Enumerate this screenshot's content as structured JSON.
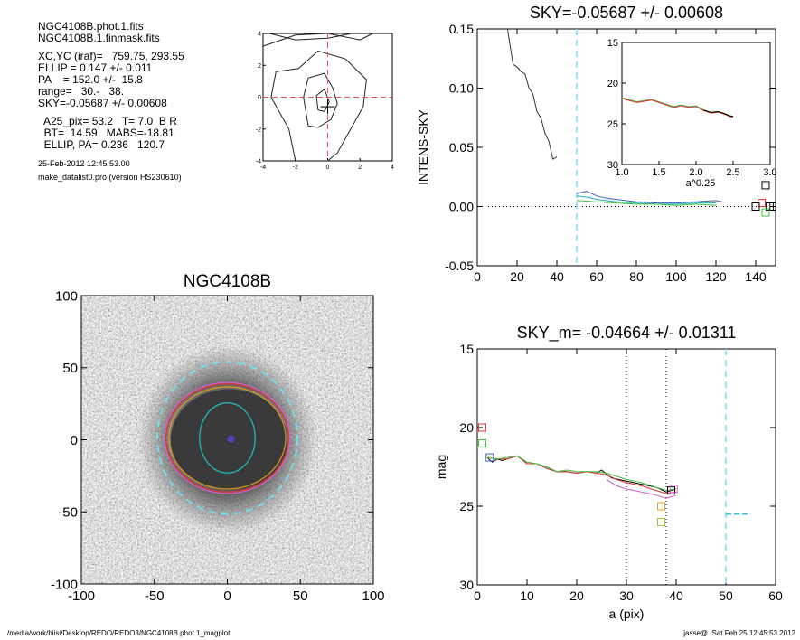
{
  "info": {
    "lines1": [
      "NGC4108B.phot.1.fits",
      "NGC4108B.1.finmask.fits"
    ],
    "lines2": [
      "XC,YC (iraf)=   759.75, 293.55",
      "ELLIP = 0.147 +/- 0.011",
      "PA    = 152.0 +/-  15.8",
      "range=   30.-   38.",
      "SKY=-0.05687 +/- 0.00608"
    ],
    "lines3": [
      "  A25_pix= 53.2   T= 7.0  B R",
      "  BT=  14.59   MABS=-18.81",
      "  ELLIP, PA= 0.236   120.7"
    ],
    "date": "25-Feb-2012 12:45:53.00",
    "program": "make_datalist0.pro (version HS230610)"
  },
  "footer": {
    "path": "/media/work/hiisi/Desktop/REDO/REDO3/NGC4108B.phot.1_magplot",
    "user": "jasse@  Sat Feb 25 12:45:53 2012"
  },
  "chart_data": [
    {
      "type": "contour",
      "xlim": [
        -4,
        4
      ],
      "ylim": [
        -4,
        4
      ],
      "xticks": [
        "-4",
        "-2",
        "0",
        "2",
        "4"
      ],
      "yticks": [
        "4",
        "2",
        "0",
        "-2",
        "-4"
      ],
      "crosshair": [
        0,
        0
      ],
      "colors": {
        "contour": "#222222",
        "crosshair": "#e85050"
      }
    },
    {
      "type": "line",
      "title": "SKY=-0.05687 +/- 0.00608",
      "ylabel": "INTENS-SKY",
      "xlim": [
        0,
        150
      ],
      "ylim": [
        -0.05,
        0.15
      ],
      "xticks": [
        "0",
        "20",
        "40",
        "60",
        "80",
        "100",
        "120",
        "140"
      ],
      "yticks": [
        "0.15",
        "0.10",
        "0.05",
        "0.00",
        "-0.05"
      ],
      "sky_line_x": 50,
      "profile": {
        "x": [
          0,
          15,
          18,
          20,
          22,
          24,
          26,
          28,
          30,
          32,
          34,
          36,
          38,
          40
        ],
        "y": [
          0.165,
          0.152,
          0.12,
          0.118,
          0.114,
          0.112,
          0.1,
          0.095,
          0.08,
          0.075,
          0.062,
          0.055,
          0.04,
          0.042
        ]
      },
      "outer_series": [
        {
          "color": "#4060c0",
          "x": [
            50,
            55,
            60,
            65,
            70,
            80,
            90,
            100,
            110,
            120,
            123
          ],
          "y": [
            0.011,
            0.013,
            0.009,
            0.007,
            0.006,
            0.004,
            0.003,
            0.003,
            0.004,
            0.005,
            0.004
          ]
        },
        {
          "color": "#20b0b0",
          "x": [
            50,
            55,
            60,
            65,
            70,
            80,
            90,
            100,
            110,
            120
          ],
          "y": [
            0.009,
            0.008,
            0.006,
            0.005,
            0.004,
            0.003,
            0.002,
            0.002,
            0.003,
            0.003
          ]
        },
        {
          "color": "#40c040",
          "x": [
            50,
            60,
            70,
            80,
            90,
            100,
            110,
            120
          ],
          "y": [
            0.005,
            0.004,
            0.003,
            0.002,
            0.002,
            0.001,
            0.002,
            0.001
          ]
        }
      ],
      "markers": [
        {
          "x": 145,
          "y": 0.018,
          "color": "#000000"
        },
        {
          "x": 143,
          "y": 0.003,
          "color": "#e03030"
        },
        {
          "x": 140,
          "y": 0.0,
          "color": "#000000"
        },
        {
          "x": 147,
          "y": 0.0,
          "color": "#000000"
        },
        {
          "x": 149,
          "y": 0.0,
          "color": "#000000"
        },
        {
          "x": 145,
          "y": -0.005,
          "color": "#40c040"
        }
      ],
      "inset": {
        "xlim": [
          1.0,
          3.0
        ],
        "ylim": [
          15,
          30
        ],
        "xticks": [
          "1.0",
          "1.5",
          "2.0",
          "2.5",
          "3.0"
        ],
        "yticks": [
          "15",
          "20",
          "25",
          "30"
        ],
        "xlabel": "a^0.25",
        "x": [
          1.0,
          1.2,
          1.4,
          1.6,
          1.7,
          1.8,
          1.9,
          2.0,
          2.1,
          2.2,
          2.3,
          2.4,
          2.45,
          2.5
        ],
        "y": [
          21.8,
          22.3,
          22.0,
          22.6,
          22.9,
          22.7,
          22.9,
          22.8,
          23.3,
          23.6,
          23.5,
          23.8,
          24.0,
          24.1
        ]
      }
    },
    {
      "type": "image",
      "title": "NGC4108B",
      "xlim": [
        -100,
        100
      ],
      "ylim": [
        -100,
        100
      ],
      "xticks": [
        "-100",
        "-50",
        "0",
        "50",
        "100"
      ],
      "yticks": [
        "100",
        "50",
        "0",
        "-50",
        "-100"
      ],
      "ellipses": [
        {
          "rx": 48,
          "ry": 52,
          "color": "#70e0f0",
          "dashed": true
        },
        {
          "rx": 42,
          "ry": 37,
          "color": "#e03030",
          "dashed": false
        },
        {
          "rx": 40,
          "ry": 35,
          "color": "#e0a020",
          "dashed": false
        },
        {
          "rx": 43,
          "ry": 38,
          "color": "#d060d0",
          "dashed": false
        },
        {
          "rx": 19,
          "ry": 24,
          "color": "#20c0c0",
          "dashed": false
        }
      ]
    },
    {
      "type": "line",
      "title": "SKY_m= -0.04664 +/- 0.01311",
      "xlabel": "a (pix)",
      "ylabel": "mag",
      "xlim": [
        0,
        60
      ],
      "ylim": [
        15,
        30
      ],
      "xticks": [
        "0",
        "10",
        "20",
        "30",
        "40",
        "50",
        "60"
      ],
      "yticks": [
        "15",
        "20",
        "25",
        "30"
      ],
      "range_lines": [
        30,
        38
      ],
      "sky_line_x": 50,
      "sky_segment": {
        "x": [
          50,
          55
        ],
        "y": 25.5
      },
      "series": [
        {
          "color": "#000000",
          "x": [
            2,
            3,
            4,
            5,
            6,
            7,
            8,
            9,
            10,
            12,
            14,
            16,
            18,
            20,
            22,
            24,
            25,
            27,
            30,
            33,
            36,
            38,
            39,
            40
          ],
          "y": [
            21.9,
            22.2,
            22.0,
            22.1,
            22.0,
            21.9,
            21.8,
            22.0,
            22.3,
            22.3,
            22.6,
            22.8,
            22.8,
            22.9,
            22.8,
            22.9,
            22.7,
            23.2,
            23.4,
            23.6,
            23.8,
            24.1,
            24.0,
            23.9
          ]
        },
        {
          "color": "#e03030",
          "x": [
            2,
            4,
            6,
            8,
            10,
            12,
            14,
            16,
            18,
            20,
            22,
            24,
            26,
            28,
            30,
            33,
            36,
            38,
            40
          ],
          "y": [
            21.9,
            22.0,
            22.0,
            21.8,
            22.3,
            22.3,
            22.6,
            22.8,
            22.8,
            22.9,
            22.8,
            22.9,
            23.0,
            23.3,
            23.5,
            23.7,
            24.0,
            24.2,
            24.1
          ]
        },
        {
          "color": "#40c040",
          "x": [
            2,
            4,
            6,
            8,
            10,
            12,
            14,
            16,
            18,
            20,
            22,
            24,
            26,
            28,
            30,
            33,
            36,
            38,
            40
          ],
          "y": [
            21.9,
            22.0,
            21.9,
            21.8,
            22.2,
            22.3,
            22.5,
            22.8,
            22.7,
            22.8,
            22.8,
            22.8,
            22.9,
            23.1,
            23.3,
            23.5,
            23.8,
            24.0,
            23.9
          ]
        },
        {
          "color": "#d060d0",
          "x": [
            26,
            28,
            30,
            33,
            36,
            38,
            40
          ],
          "y": [
            23.3,
            23.7,
            23.9,
            24.1,
            24.3,
            24.5,
            24.3
          ]
        }
      ],
      "markers": [
        {
          "x": 1,
          "y": 20.0,
          "color": "#e03030"
        },
        {
          "x": 1,
          "y": 21.0,
          "color": "#40c040"
        },
        {
          "x": 2.5,
          "y": 21.9,
          "color": "#4060c0"
        },
        {
          "x": 39,
          "y": 24.0,
          "color": "#000000"
        },
        {
          "x": 39.5,
          "y": 23.9,
          "color": "#d060d0"
        },
        {
          "x": 37,
          "y": 25.0,
          "color": "#e0a020"
        },
        {
          "x": 37,
          "y": 26.0,
          "color": "#a0c030"
        }
      ]
    }
  ]
}
